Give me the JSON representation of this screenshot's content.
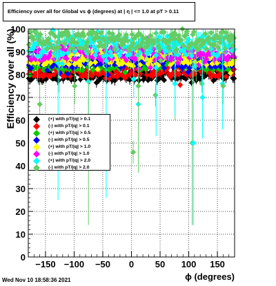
{
  "title": "Efficiency over all for Global vs ϕ (degrees) at | η | <= 1.0 at pT > 0.11",
  "date_stamp": "Wed Nov 10 18:58:36 2021",
  "chart_data": {
    "type": "scatter",
    "title": "Efficiency over all for Global vs ϕ (degrees) at | η | <= 1.0 at pT > 0.11",
    "xlabel": "ϕ (degrees)",
    "ylabel": "Efficiency over all (%)",
    "xlim": [
      -180,
      180
    ],
    "ylim": [
      0,
      100
    ],
    "x_ticks": [
      -150,
      -100,
      -50,
      0,
      50,
      100,
      150
    ],
    "x_tick_labels": [
      "−150",
      "−100",
      "−50",
      "0",
      "50",
      "100",
      "150"
    ],
    "y_ticks": [
      0,
      10,
      20,
      30,
      40,
      50,
      60,
      70,
      80,
      90,
      100
    ],
    "grid": true,
    "legend_position": "middle-left",
    "series": [
      {
        "name": "(+) with pT/|q| > 0.1",
        "color": "#000000",
        "marker": "diamond",
        "center": 79.5,
        "spread": 2.2,
        "seed": 11
      },
      {
        "name": "(-) with pT/|q| > 0.1",
        "color": "#ff0000",
        "marker": "diamond",
        "center": 81.5,
        "spread": 2.4,
        "seed": 23
      },
      {
        "name": "(+) with pT/|q| > 0.5",
        "color": "#00cc00",
        "marker": "diamond",
        "center": 84.5,
        "spread": 2.6,
        "seed": 37
      },
      {
        "name": "(-) with pT/|q| > 0.5",
        "color": "#0000ff",
        "marker": "diamond",
        "center": 85.5,
        "spread": 2.8,
        "seed": 41
      },
      {
        "name": "(+) with pT/|q| > 1.0",
        "color": "#ffff00",
        "marker": "diamond",
        "center": 87.0,
        "spread": 3.0,
        "seed": 53
      },
      {
        "name": "(-) with pT/|q| > 1.0",
        "color": "#ff00ff",
        "marker": "diamond",
        "center": 89.5,
        "spread": 3.2,
        "seed": 67
      },
      {
        "name": "(+) with pT/|q| > 2.0",
        "color": "#00ffff",
        "marker": "diamond",
        "center": 92.5,
        "spread": 4.5,
        "seed": 71
      },
      {
        "name": "(-) with pT/|q| > 2.0",
        "color": "#66cc66",
        "marker": "diamond",
        "center": 95.0,
        "spread": 4.0,
        "seed": 89
      }
    ],
    "outliers": [
      {
        "series": 6,
        "x": -164,
        "y": 88,
        "err": 12
      },
      {
        "series": 7,
        "x": -160,
        "y": 67,
        "err": 10
      },
      {
        "series": 6,
        "x": -128,
        "y": 85,
        "err": 60
      },
      {
        "series": 7,
        "x": -126,
        "y": 92,
        "err": 20
      },
      {
        "series": 7,
        "x": -99,
        "y": 75,
        "err": 8
      },
      {
        "series": 6,
        "x": -75,
        "y": 77,
        "err": 20
      },
      {
        "series": 7,
        "x": -75,
        "y": 90,
        "err": 76
      },
      {
        "series": 6,
        "x": -44,
        "y": 86,
        "err": 60
      },
      {
        "series": 6,
        "x": 4,
        "y": 78,
        "err": 8
      },
      {
        "series": 7,
        "x": 3,
        "y": 46,
        "err": 5
      },
      {
        "series": 6,
        "x": 12,
        "y": 67,
        "err": 28
      },
      {
        "series": 7,
        "x": 12,
        "y": 75,
        "err": 38
      },
      {
        "series": 7,
        "x": 42,
        "y": 71,
        "err": 5
      },
      {
        "series": 6,
        "x": 43,
        "y": 83,
        "err": 30
      },
      {
        "series": 7,
        "x": 76,
        "y": 90,
        "err": 30
      },
      {
        "series": 6,
        "x": 76,
        "y": 76,
        "err": 14
      },
      {
        "series": 7,
        "x": 106,
        "y": 50,
        "err": 36
      },
      {
        "series": 6,
        "x": 108,
        "y": 50,
        "err": 36
      },
      {
        "series": 7,
        "x": 123,
        "y": 76,
        "err": 4
      },
      {
        "series": 6,
        "x": 124,
        "y": 70,
        "err": 18
      },
      {
        "series": 6,
        "x": 159,
        "y": 76,
        "err": 20
      },
      {
        "series": 7,
        "x": 160,
        "y": 75,
        "err": 8
      },
      {
        "series": 7,
        "x": 113,
        "y": 92,
        "err": 15
      }
    ]
  }
}
